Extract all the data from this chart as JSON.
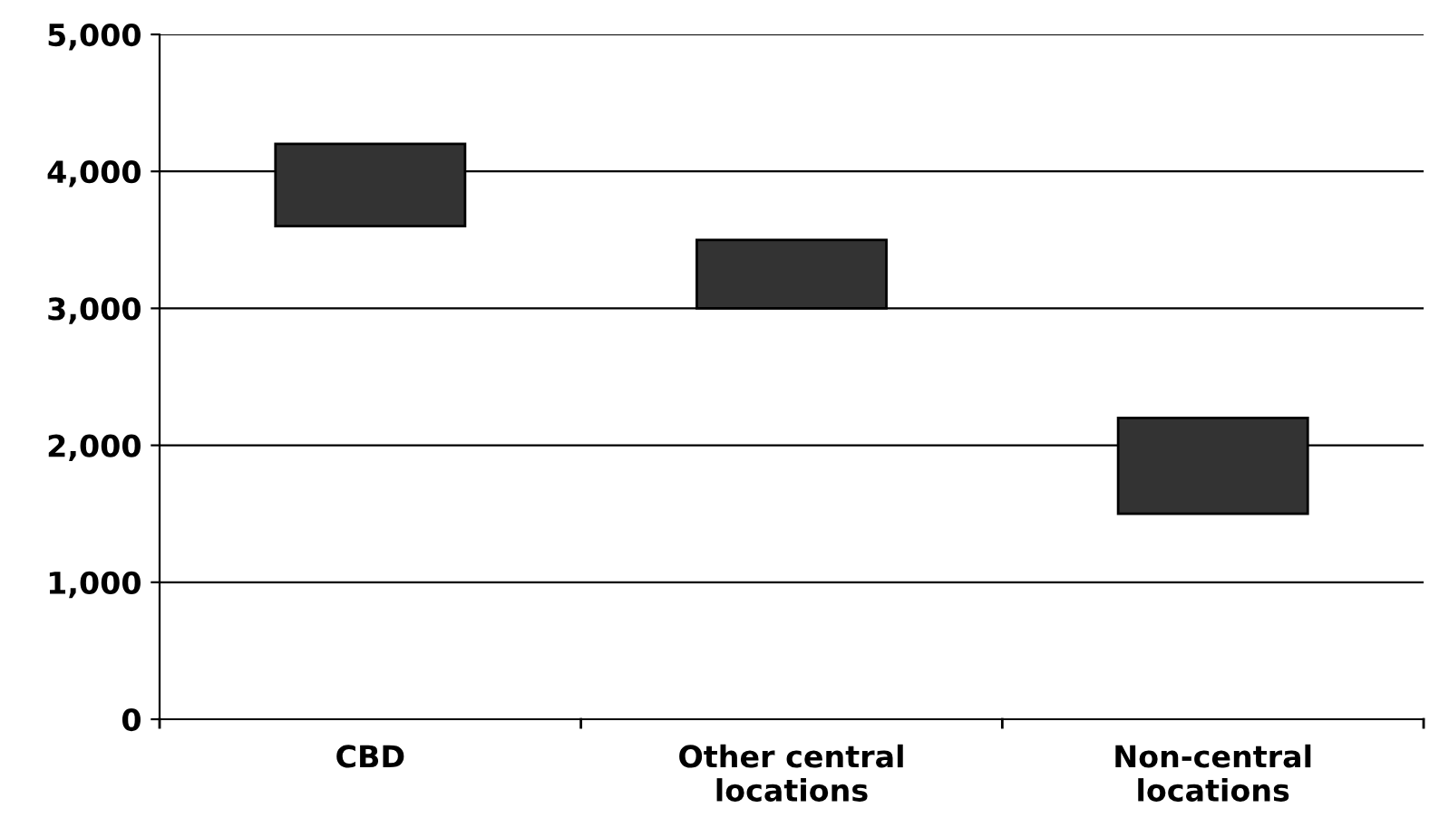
{
  "chart_data": {
    "type": "bar",
    "categories": [
      "CBD",
      "Other central locations",
      "Non-central locations"
    ],
    "base": [
      3600,
      3000,
      1500
    ],
    "values": [
      600,
      500,
      700
    ],
    "color": "#333333",
    "ylim": [
      0,
      5000
    ],
    "yticks": [
      {
        "value": 0,
        "label": "0"
      },
      {
        "value": 1000,
        "label": "1,000"
      },
      {
        "value": 2000,
        "label": "2,000"
      },
      {
        "value": 3000,
        "label": "3,000"
      },
      {
        "value": 4000,
        "label": "4,000"
      },
      {
        "value": 5000,
        "label": "5,000"
      }
    ],
    "grid": "y"
  }
}
